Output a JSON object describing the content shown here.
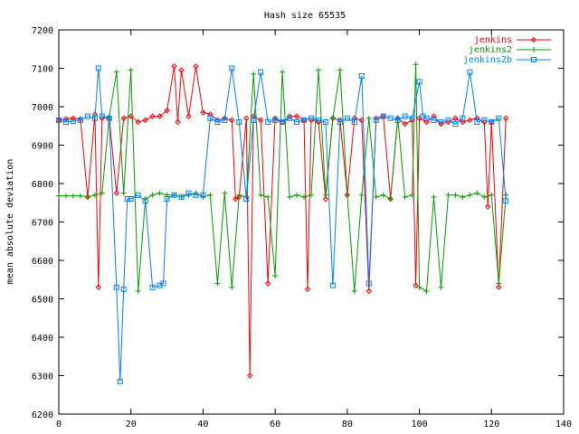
{
  "chart_data": {
    "type": "line",
    "title": "Hash size 65535",
    "xlabel": "",
    "ylabel": "mean absolute deviation",
    "xlim": [
      0,
      140
    ],
    "ylim": [
      6200,
      7200
    ],
    "xticks": [
      0,
      20,
      40,
      60,
      80,
      100,
      120,
      140
    ],
    "yticks": [
      6200,
      6300,
      6400,
      6500,
      6600,
      6700,
      6800,
      6900,
      7000,
      7100,
      7200
    ],
    "grid": false,
    "legend_position": "top-right",
    "series": [
      {
        "name": "jenkins",
        "color": "#ff0000",
        "marker": "diamond",
        "x": [
          0,
          2,
          4,
          6,
          8,
          10,
          11,
          12,
          14,
          16,
          18,
          20,
          22,
          24,
          26,
          28,
          30,
          32,
          33,
          34,
          36,
          38,
          40,
          42,
          44,
          46,
          48,
          49,
          50,
          52,
          53,
          54,
          56,
          58,
          60,
          62,
          64,
          66,
          68,
          69,
          70,
          72,
          74,
          76,
          78,
          80,
          82,
          84,
          86,
          88,
          90,
          92,
          94,
          96,
          98,
          99,
          100,
          102,
          104,
          106,
          108,
          110,
          112,
          114,
          116,
          118,
          119,
          120,
          122,
          124
        ],
        "y": [
          6965,
          6968,
          6970,
          6968,
          6765,
          6980,
          6530,
          6970,
          6970,
          6775,
          6970,
          6975,
          6960,
          6965,
          6975,
          6975,
          6990,
          7105,
          6960,
          7095,
          6975,
          7105,
          6985,
          6980,
          6965,
          6970,
          6965,
          6760,
          6765,
          6970,
          6300,
          6975,
          6965,
          6540,
          6970,
          6960,
          6975,
          6975,
          6965,
          6525,
          6965,
          6960,
          6760,
          6970,
          6965,
          6770,
          6970,
          6965,
          6520,
          6970,
          6975,
          6760,
          6970,
          6955,
          6965,
          6535,
          6970,
          6960,
          6975,
          6955,
          6960,
          6970,
          6960,
          6965,
          6970,
          6960,
          6740,
          6960,
          6530,
          6970
        ]
      },
      {
        "name": "jenkins2",
        "color": "#00a000",
        "marker": "plus",
        "x": [
          0,
          2,
          4,
          6,
          8,
          10,
          12,
          14,
          16,
          18,
          20,
          22,
          24,
          26,
          28,
          30,
          32,
          34,
          36,
          38,
          40,
          42,
          44,
          46,
          48,
          50,
          52,
          54,
          56,
          58,
          60,
          62,
          64,
          66,
          68,
          70,
          72,
          74,
          76,
          78,
          80,
          82,
          84,
          86,
          88,
          90,
          92,
          94,
          96,
          98,
          99,
          100,
          102,
          104,
          106,
          108,
          110,
          112,
          114,
          116,
          118,
          120,
          122,
          124
        ],
        "y": [
          6768,
          6768,
          6768,
          6768,
          6765,
          6770,
          6775,
          6975,
          7090,
          6775,
          7095,
          6520,
          6760,
          6770,
          6775,
          6770,
          6770,
          6765,
          6770,
          6775,
          6765,
          6770,
          6540,
          6775,
          6530,
          6770,
          6765,
          7085,
          6770,
          6765,
          6560,
          7090,
          6765,
          6770,
          6765,
          6770,
          7095,
          6770,
          6970,
          7095,
          6770,
          6520,
          6770,
          6970,
          6765,
          6770,
          6760,
          6970,
          6765,
          6770,
          7110,
          6530,
          6520,
          6765,
          6530,
          6770,
          6770,
          6765,
          6770,
          6775,
          6765,
          6770,
          6540,
          6770
        ]
      },
      {
        "name": "jenkins2b",
        "color": "#0080ff",
        "marker": "square",
        "x": [
          0,
          2,
          4,
          6,
          8,
          10,
          11,
          12,
          14,
          16,
          17,
          18,
          19,
          20,
          22,
          24,
          26,
          28,
          29,
          30,
          32,
          34,
          36,
          38,
          40,
          42,
          44,
          46,
          48,
          50,
          52,
          54,
          56,
          58,
          60,
          62,
          64,
          66,
          68,
          70,
          72,
          74,
          76,
          78,
          80,
          82,
          84,
          86,
          88,
          90,
          92,
          94,
          96,
          98,
          100,
          101,
          102,
          104,
          106,
          108,
          110,
          112,
          114,
          116,
          118,
          120,
          122,
          124
        ],
        "y": [
          6965,
          6960,
          6962,
          6965,
          6975,
          6970,
          7100,
          6975,
          6970,
          6530,
          6285,
          6525,
          6760,
          6760,
          6770,
          6755,
          6530,
          6535,
          6540,
          6760,
          6770,
          6765,
          6775,
          6770,
          6770,
          6970,
          6960,
          6965,
          7100,
          6960,
          6760,
          6965,
          7090,
          6960,
          6965,
          6960,
          6970,
          6960,
          6965,
          6970,
          6965,
          6960,
          6535,
          6960,
          6970,
          6960,
          7080,
          6540,
          6965,
          6975,
          6970,
          6965,
          6975,
          6970,
          7065,
          6975,
          6970,
          6965,
          6960,
          6965,
          6955,
          6970,
          7090,
          6960,
          6965,
          6960,
          6970,
          6755
        ]
      }
    ]
  }
}
